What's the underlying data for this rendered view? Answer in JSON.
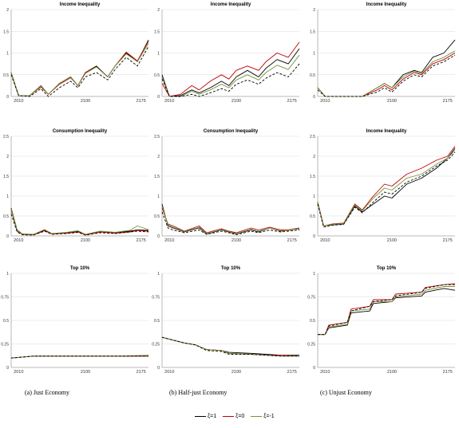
{
  "chart_data": [
    {
      "type": "line",
      "panel": "a1",
      "title": "Income Inequality",
      "xticks": [
        "2010",
        "2100",
        "2175"
      ],
      "yticks": [
        "0",
        "0.5",
        "1",
        "1.5",
        "2"
      ],
      "ylim": [
        0,
        2
      ],
      "x": [
        2000,
        2010,
        2025,
        2040,
        2050,
        2065,
        2080,
        2090,
        2100,
        2115,
        2130,
        2140,
        2155,
        2170,
        2185
      ],
      "series": [
        {
          "name": "ξ=1",
          "color": "#000000",
          "dash": "solid",
          "values": [
            0.55,
            0.02,
            0.02,
            0.25,
            0.05,
            0.3,
            0.45,
            0.25,
            0.55,
            0.7,
            0.45,
            0.7,
            1.0,
            0.8,
            1.3
          ]
        },
        {
          "name": "ξ=0",
          "color": "#c00000",
          "dash": "solid",
          "values": [
            0.55,
            0.02,
            0.02,
            0.22,
            0.05,
            0.28,
            0.43,
            0.25,
            0.55,
            0.68,
            0.45,
            0.7,
            1.02,
            0.82,
            1.27
          ]
        },
        {
          "name": "ξ=-1",
          "color": "#77933c",
          "dash": "solid",
          "values": [
            0.55,
            0.02,
            0.02,
            0.24,
            0.05,
            0.3,
            0.44,
            0.25,
            0.53,
            0.68,
            0.45,
            0.7,
            0.98,
            0.8,
            1.22
          ]
        },
        {
          "name": "",
          "color": "#000000",
          "dash": "dashed",
          "values": [
            0.5,
            0.02,
            0.0,
            0.18,
            0.0,
            0.2,
            0.35,
            0.2,
            0.45,
            0.55,
            0.38,
            0.62,
            0.9,
            0.7,
            1.15
          ]
        }
      ]
    },
    {
      "type": "line",
      "panel": "b1",
      "title": "Income Inequality",
      "xticks": [
        "2010",
        "2100",
        "2175"
      ],
      "yticks": [
        "0",
        "0.5",
        "1",
        "1.5",
        "2"
      ],
      "ylim": [
        0,
        2
      ],
      "x": [
        2000,
        2010,
        2025,
        2040,
        2050,
        2065,
        2080,
        2090,
        2100,
        2115,
        2130,
        2140,
        2155,
        2170,
        2185
      ],
      "series": [
        {
          "name": "ξ=1",
          "color": "#000000",
          "dash": "solid",
          "values": [
            0.5,
            0.0,
            0.02,
            0.15,
            0.08,
            0.2,
            0.35,
            0.25,
            0.45,
            0.6,
            0.45,
            0.65,
            0.85,
            0.75,
            1.1
          ]
        },
        {
          "name": "ξ=0",
          "color": "#c00000",
          "dash": "solid",
          "values": [
            0.3,
            0.0,
            0.05,
            0.25,
            0.15,
            0.35,
            0.5,
            0.4,
            0.6,
            0.7,
            0.6,
            0.8,
            1.0,
            0.9,
            1.25
          ]
        },
        {
          "name": "ξ=-1",
          "color": "#77933c",
          "dash": "solid",
          "values": [
            0.45,
            0.0,
            0.0,
            0.12,
            0.05,
            0.15,
            0.28,
            0.2,
            0.38,
            0.5,
            0.38,
            0.55,
            0.72,
            0.62,
            0.95
          ]
        },
        {
          "name": "",
          "color": "#000000",
          "dash": "dashed",
          "values": [
            0.4,
            0.0,
            0.0,
            0.05,
            0.0,
            0.08,
            0.18,
            0.12,
            0.28,
            0.38,
            0.28,
            0.42,
            0.55,
            0.45,
            0.75
          ]
        }
      ]
    },
    {
      "type": "line",
      "panel": "c1",
      "title": "Income Inequality",
      "xticks": [
        "2010",
        "2100",
        "2175"
      ],
      "yticks": [
        "0",
        "0.5",
        "1",
        "1.5",
        "2"
      ],
      "ylim": [
        0,
        2
      ],
      "x": [
        2000,
        2010,
        2025,
        2040,
        2060,
        2080,
        2090,
        2100,
        2115,
        2130,
        2140,
        2155,
        2170,
        2185
      ],
      "series": [
        {
          "name": "ξ=1",
          "color": "#000000",
          "dash": "solid",
          "values": [
            0.2,
            0.0,
            0.0,
            0.0,
            0.0,
            0.2,
            0.3,
            0.2,
            0.5,
            0.6,
            0.55,
            0.9,
            1.0,
            1.3
          ]
        },
        {
          "name": "ξ=0",
          "color": "#c00000",
          "dash": "solid",
          "values": [
            0.2,
            0.0,
            0.0,
            0.0,
            0.0,
            0.15,
            0.25,
            0.15,
            0.4,
            0.55,
            0.5,
            0.75,
            0.85,
            1.0
          ]
        },
        {
          "name": "ξ=-1",
          "color": "#77933c",
          "dash": "solid",
          "values": [
            0.2,
            0.0,
            0.0,
            0.0,
            0.0,
            0.2,
            0.3,
            0.2,
            0.45,
            0.58,
            0.52,
            0.8,
            0.9,
            1.05
          ]
        },
        {
          "name": "",
          "color": "#000000",
          "dash": "dashed",
          "values": [
            0.15,
            0.0,
            0.0,
            0.0,
            0.0,
            0.1,
            0.2,
            0.1,
            0.35,
            0.5,
            0.45,
            0.7,
            0.8,
            0.95
          ]
        }
      ]
    },
    {
      "type": "line",
      "panel": "a2",
      "title": "Consumption Inequality",
      "xticks": [
        "2010",
        "2100",
        "2175"
      ],
      "yticks": [
        "0",
        "0.5",
        "1",
        "1.5",
        "2",
        "2.5"
      ],
      "ylim": [
        0,
        2.5
      ],
      "x": [
        2000,
        2008,
        2015,
        2030,
        2045,
        2055,
        2075,
        2090,
        2100,
        2120,
        2140,
        2160,
        2170,
        2185
      ],
      "series": [
        {
          "name": "ξ=1",
          "color": "#000000",
          "dash": "solid",
          "values": [
            0.7,
            0.15,
            0.05,
            0.03,
            0.15,
            0.05,
            0.08,
            0.12,
            0.03,
            0.1,
            0.08,
            0.12,
            0.15,
            0.14
          ]
        },
        {
          "name": "ξ=0",
          "color": "#c00000",
          "dash": "solid",
          "values": [
            0.65,
            0.12,
            0.04,
            0.03,
            0.13,
            0.05,
            0.07,
            0.1,
            0.03,
            0.1,
            0.07,
            0.1,
            0.14,
            0.12
          ]
        },
        {
          "name": "ξ=-1",
          "color": "#77933c",
          "dash": "solid",
          "values": [
            0.68,
            0.14,
            0.05,
            0.04,
            0.16,
            0.06,
            0.09,
            0.13,
            0.04,
            0.12,
            0.09,
            0.14,
            0.25,
            0.16
          ]
        },
        {
          "name": "",
          "color": "#000000",
          "dash": "dashed",
          "values": [
            0.55,
            0.1,
            0.03,
            0.02,
            0.12,
            0.04,
            0.06,
            0.09,
            0.02,
            0.08,
            0.06,
            0.1,
            0.12,
            0.1
          ]
        }
      ]
    },
    {
      "type": "line",
      "panel": "b2",
      "title": "Consumption Inequality",
      "xticks": [
        "2010",
        "2100",
        "2175"
      ],
      "yticks": [
        "0",
        "0.5",
        "1",
        "1.5",
        "2",
        "2.5"
      ],
      "ylim": [
        0,
        2.5
      ],
      "x": [
        2000,
        2008,
        2015,
        2030,
        2050,
        2060,
        2080,
        2090,
        2100,
        2120,
        2130,
        2145,
        2160,
        2170,
        2185
      ],
      "series": [
        {
          "name": "ξ=1",
          "color": "#000000",
          "dash": "solid",
          "values": [
            0.8,
            0.25,
            0.2,
            0.1,
            0.2,
            0.05,
            0.15,
            0.1,
            0.05,
            0.15,
            0.1,
            0.2,
            0.12,
            0.15,
            0.18
          ]
        },
        {
          "name": "ξ=0",
          "color": "#c00000",
          "dash": "solid",
          "values": [
            0.7,
            0.3,
            0.25,
            0.12,
            0.25,
            0.08,
            0.18,
            0.12,
            0.08,
            0.2,
            0.15,
            0.22,
            0.15,
            0.15,
            0.2
          ]
        },
        {
          "name": "ξ=-1",
          "color": "#77933c",
          "dash": "solid",
          "values": [
            0.75,
            0.28,
            0.22,
            0.11,
            0.22,
            0.06,
            0.16,
            0.11,
            0.06,
            0.17,
            0.12,
            0.2,
            0.13,
            0.14,
            0.19
          ]
        },
        {
          "name": "",
          "color": "#000000",
          "dash": "dashed",
          "values": [
            0.6,
            0.2,
            0.15,
            0.08,
            0.15,
            0.04,
            0.12,
            0.08,
            0.03,
            0.12,
            0.08,
            0.15,
            0.1,
            0.12,
            0.15
          ]
        }
      ]
    },
    {
      "type": "line",
      "panel": "c2",
      "title": "Income Inequality",
      "xticks": [
        "2010",
        "2100",
        "2175"
      ],
      "yticks": [
        "0",
        "0.5",
        "1",
        "1.5",
        "2",
        "2.5"
      ],
      "ylim": [
        0,
        2.5
      ],
      "x": [
        2000,
        2008,
        2020,
        2035,
        2050,
        2060,
        2075,
        2090,
        2100,
        2120,
        2140,
        2160,
        2175,
        2185
      ],
      "series": [
        {
          "name": "ξ=1",
          "color": "#000000",
          "dash": "solid",
          "values": [
            0.85,
            0.25,
            0.28,
            0.3,
            0.75,
            0.6,
            0.8,
            1.0,
            0.95,
            1.3,
            1.45,
            1.7,
            1.95,
            2.2
          ]
        },
        {
          "name": "ξ=0",
          "color": "#c00000",
          "dash": "solid",
          "values": [
            0.85,
            0.25,
            0.3,
            0.32,
            0.8,
            0.65,
            1.0,
            1.3,
            1.25,
            1.55,
            1.7,
            1.9,
            2.0,
            2.25
          ]
        },
        {
          "name": "ξ=-1",
          "color": "#77933c",
          "dash": "solid",
          "values": [
            0.85,
            0.25,
            0.29,
            0.31,
            0.78,
            0.63,
            0.95,
            1.2,
            1.15,
            1.45,
            1.55,
            1.8,
            1.95,
            2.15
          ]
        },
        {
          "name": "",
          "color": "#000000",
          "dash": "dashed",
          "values": [
            0.8,
            0.22,
            0.27,
            0.29,
            0.72,
            0.58,
            0.85,
            1.1,
            1.05,
            1.35,
            1.5,
            1.75,
            1.9,
            2.1
          ]
        }
      ]
    },
    {
      "type": "line",
      "panel": "a3",
      "title": "Top 10%",
      "xticks": [
        "2010",
        "2100",
        "2175"
      ],
      "yticks": [
        "0",
        "0.25",
        "0.5",
        "0.75",
        "1"
      ],
      "ylim": [
        0,
        1
      ],
      "x": [
        2000,
        2030,
        2060,
        2100,
        2140,
        2185
      ],
      "series": [
        {
          "name": "ξ=1",
          "color": "#000000",
          "dash": "solid",
          "values": [
            0.1,
            0.12,
            0.12,
            0.12,
            0.12,
            0.12
          ]
        },
        {
          "name": "ξ=0",
          "color": "#c00000",
          "dash": "solid",
          "values": [
            0.1,
            0.12,
            0.12,
            0.12,
            0.12,
            0.12
          ]
        },
        {
          "name": "ξ=-1",
          "color": "#77933c",
          "dash": "solid",
          "values": [
            0.1,
            0.12,
            0.12,
            0.12,
            0.12,
            0.13
          ]
        },
        {
          "name": "",
          "color": "#000000",
          "dash": "dashed",
          "values": [
            0.1,
            0.12,
            0.12,
            0.12,
            0.12,
            0.12
          ]
        }
      ]
    },
    {
      "type": "line",
      "panel": "b3",
      "title": "Top 10%",
      "xticks": [
        "2010",
        "2100",
        "2175"
      ],
      "yticks": [
        "0",
        "0.25",
        "0.5",
        "0.75",
        "1"
      ],
      "ylim": [
        0,
        1
      ],
      "x": [
        2000,
        2010,
        2030,
        2045,
        2060,
        2080,
        2090,
        2120,
        2140,
        2160,
        2185
      ],
      "series": [
        {
          "name": "ξ=1",
          "color": "#000000",
          "dash": "solid",
          "values": [
            0.32,
            0.3,
            0.26,
            0.24,
            0.19,
            0.18,
            0.16,
            0.15,
            0.14,
            0.13,
            0.13
          ]
        },
        {
          "name": "ξ=0",
          "color": "#c00000",
          "dash": "solid",
          "values": [
            0.32,
            0.3,
            0.26,
            0.24,
            0.19,
            0.18,
            0.15,
            0.14,
            0.13,
            0.13,
            0.12
          ]
        },
        {
          "name": "ξ=-1",
          "color": "#77933c",
          "dash": "solid",
          "values": [
            0.32,
            0.3,
            0.26,
            0.24,
            0.19,
            0.18,
            0.15,
            0.14,
            0.13,
            0.12,
            0.12
          ]
        },
        {
          "name": "",
          "color": "#000000",
          "dash": "dashed",
          "values": [
            0.32,
            0.3,
            0.26,
            0.24,
            0.18,
            0.17,
            0.14,
            0.14,
            0.13,
            0.12,
            0.12
          ]
        }
      ]
    },
    {
      "type": "line",
      "panel": "c3",
      "title": "Top 10%",
      "xticks": [
        "2010",
        "2100",
        "2175"
      ],
      "yticks": [
        "0",
        "0.25",
        "0.5",
        "0.75",
        "1"
      ],
      "ylim": [
        0,
        1
      ],
      "x": [
        2000,
        2010,
        2015,
        2040,
        2045,
        2070,
        2075,
        2100,
        2105,
        2140,
        2145,
        2170,
        2185
      ],
      "series": [
        {
          "name": "ξ=1",
          "color": "#000000",
          "dash": "solid",
          "values": [
            0.35,
            0.35,
            0.42,
            0.45,
            0.58,
            0.6,
            0.68,
            0.7,
            0.74,
            0.76,
            0.8,
            0.84,
            0.82
          ]
        },
        {
          "name": "ξ=0",
          "color": "#c00000",
          "dash": "solid",
          "values": [
            0.35,
            0.35,
            0.45,
            0.48,
            0.62,
            0.65,
            0.72,
            0.72,
            0.78,
            0.8,
            0.85,
            0.88,
            0.89
          ]
        },
        {
          "name": "ξ=-1",
          "color": "#77933c",
          "dash": "solid",
          "values": [
            0.35,
            0.35,
            0.43,
            0.46,
            0.6,
            0.62,
            0.7,
            0.7,
            0.75,
            0.78,
            0.82,
            0.86,
            0.86
          ]
        },
        {
          "name": "",
          "color": "#000000",
          "dash": "dashed",
          "values": [
            0.35,
            0.35,
            0.44,
            0.48,
            0.6,
            0.65,
            0.7,
            0.72,
            0.76,
            0.8,
            0.84,
            0.88,
            0.88
          ]
        }
      ]
    }
  ],
  "captions": [
    "(a)  Just Economy",
    "(b) Half-just Economy",
    "(c) Unjust Economy"
  ],
  "legend": [
    {
      "label": "ξ=1",
      "color": "#000000"
    },
    {
      "label": "ξ=0",
      "color": "#c00000"
    },
    {
      "label": "ξ=-1",
      "color": "#77933c"
    }
  ]
}
